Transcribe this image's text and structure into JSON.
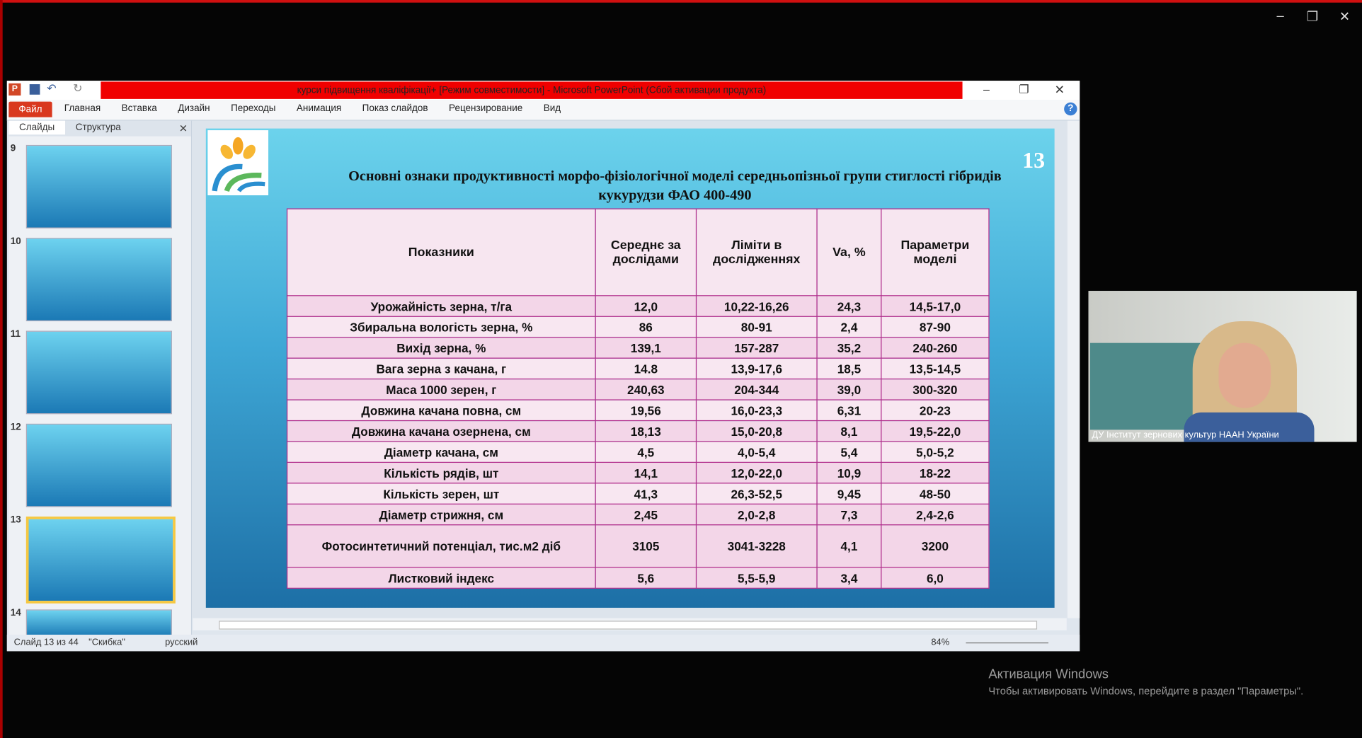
{
  "app": {
    "title": "курси підвищення кваліфікації+ [Режим совместимости] - Microsoft PowerPoint (Сбой активации продукта)",
    "file_tab": "Файл",
    "tabs": [
      "Главная",
      "Вставка",
      "Дизайн",
      "Переходы",
      "Анимация",
      "Показ слайдов",
      "Рецензирование",
      "Вид"
    ]
  },
  "panel": {
    "tabs": [
      "Слайды",
      "Структура"
    ],
    "thumbnails": [
      "9",
      "10",
      "11",
      "12",
      "13",
      "14"
    ]
  },
  "slide": {
    "number": "13",
    "title_lines": [
      "Основні ознаки продуктивності морфо-фізіологічної моделі середньопізньої групи стиглості гібридів",
      "кукурудзи ФАО 400-490"
    ],
    "table": {
      "header": [
        "Показники",
        "Середнє за дослідами",
        "Ліміти в дослідженнях",
        "Va, %",
        "Параметри моделі"
      ],
      "rows": [
        [
          "Урожайність зерна, т/га",
          "12,0",
          "10,22-16,26",
          "24,3",
          "14,5-17,0"
        ],
        [
          "Збиральна вологість зерна, %",
          "86",
          "80-91",
          "2,4",
          "87-90"
        ],
        [
          "Вихід зерна, %",
          "139,1",
          "157-287",
          "35,2",
          "240-260"
        ],
        [
          "Вага зерна з качана, г",
          "14.8",
          "13,9-17,6",
          "18,5",
          "13,5-14,5"
        ],
        [
          "Маса 1000 зерен, г",
          "240,63",
          "204-344",
          "39,0",
          "300-320"
        ],
        [
          "Довжина качана повна, см",
          "19,56",
          "16,0-23,3",
          "6,31",
          "20-23"
        ],
        [
          "Довжина качана озернена, см",
          "18,13",
          "15,0-20,8",
          "8,1",
          "19,5-22,0"
        ],
        [
          "Діаметр качана, см",
          "4,5",
          "4,0-5,4",
          "5,4",
          "5,0-5,2"
        ],
        [
          "Кількість рядів, шт",
          "14,1",
          "12,0-22,0",
          "10,9",
          "18-22"
        ],
        [
          "Кількість зерен, шт",
          "41,3",
          "26,3-52,5",
          "9,45",
          "48-50"
        ],
        [
          "Діаметр стрижня, см",
          "2,45",
          "2,0-2,8",
          "7,3",
          "2,4-2,6"
        ],
        [
          "Фотосинтетичний потенціал, тис.м2 діб",
          "3105",
          "3041-3228",
          "4,1",
          "3200"
        ],
        [
          "Листковий індекс",
          "5,6",
          "5,5-5,9",
          "3,4",
          "6,0"
        ]
      ]
    }
  },
  "status": {
    "slide": "Слайд 13 из 44",
    "theme": "\"Скибка\"",
    "language": "русский",
    "zoom": "84%"
  },
  "video": {
    "label": "ДУ Інститут зернових культур НААН України"
  },
  "activation": {
    "title": "Активация Windows",
    "text": "Чтобы активировать Windows, перейдите в раздел \"Параметры\"."
  }
}
